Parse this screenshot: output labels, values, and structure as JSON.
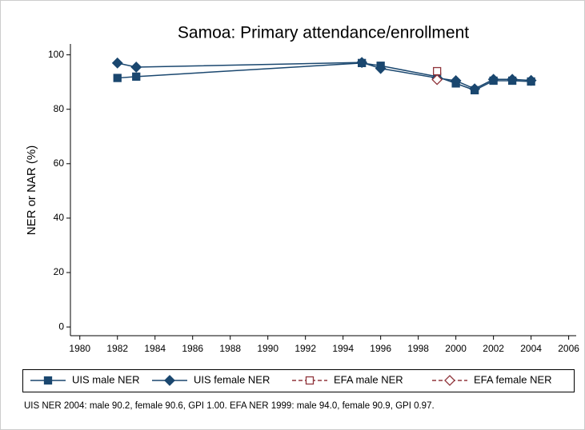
{
  "chart_data": {
    "type": "line",
    "title": "Samoa: Primary attendance/enrollment",
    "y_label": "NER or NAR (%)",
    "note": "UIS NER 2004: male 90.2, female 90.6, GPI 1.00. EFA NER 1999: male 94.0, female 90.9, GPI 0.97.",
    "xlim": [
      1979.5,
      2006.4
    ],
    "xticks": [
      1980,
      1982,
      1984,
      1986,
      1988,
      1990,
      1992,
      1994,
      1996,
      1998,
      2000,
      2002,
      2004,
      2006
    ],
    "ylim": [
      -3.2,
      104
    ],
    "yticks": [
      0,
      20,
      40,
      60,
      80,
      100
    ],
    "series": [
      {
        "name": "UIS male NER",
        "color": "#1a476f",
        "marker": "square",
        "hollow": false,
        "dashed": false,
        "x": [
          1982,
          1983,
          1995,
          1996,
          1999,
          2000,
          2001,
          2002,
          2003,
          2004
        ],
        "values": [
          91.5,
          92,
          97,
          96,
          92,
          89.5,
          87,
          90.5,
          90.5,
          90.2
        ]
      },
      {
        "name": "UIS female NER",
        "color": "#1a476f",
        "marker": "diamond",
        "hollow": false,
        "dashed": false,
        "x": [
          1982,
          1983,
          1995,
          1996,
          1999,
          2000,
          2001,
          2002,
          2003,
          2004
        ],
        "values": [
          97,
          95.5,
          97.2,
          95,
          91.5,
          90.5,
          87.5,
          91,
          91,
          90.6
        ]
      },
      {
        "name": "EFA male NER",
        "color": "#90353b",
        "marker": "square",
        "hollow": true,
        "dashed": true,
        "x": [
          1999
        ],
        "values": [
          94.0
        ]
      },
      {
        "name": "EFA female NER",
        "color": "#90353b",
        "marker": "diamond",
        "hollow": true,
        "dashed": true,
        "x": [
          1999
        ],
        "values": [
          90.9
        ]
      }
    ]
  }
}
